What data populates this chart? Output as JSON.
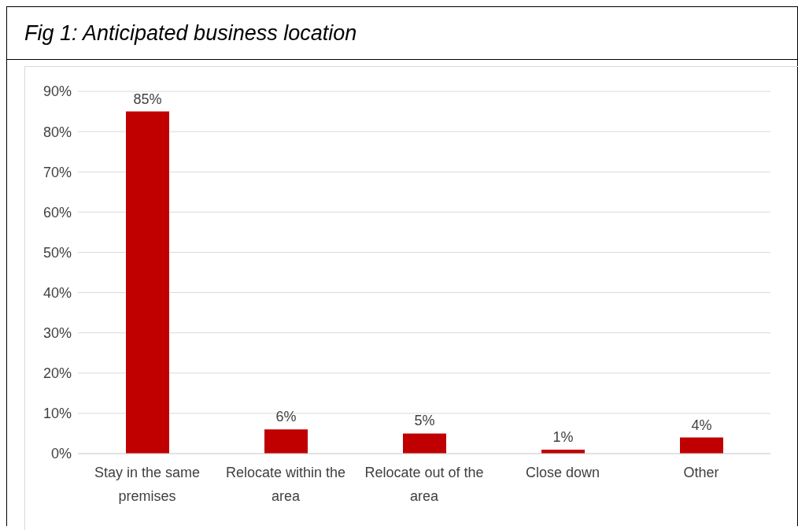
{
  "chart_data": {
    "type": "bar",
    "title": "Fig 1: Anticipated business location",
    "categories": [
      "Stay in the same premises",
      "Relocate within the area",
      "Relocate out of the area",
      "Close down",
      "Other"
    ],
    "values": [
      85,
      6,
      5,
      1,
      4
    ],
    "color": "#c00000",
    "value_labels": [
      "85%",
      "6%",
      "5%",
      "1%",
      "4%"
    ],
    "ylim": [
      0,
      90
    ],
    "yticks": [
      {
        "value": 0,
        "label": "0%"
      },
      {
        "value": 10,
        "label": "10%"
      },
      {
        "value": 20,
        "label": "20%"
      },
      {
        "value": 30,
        "label": "30%"
      },
      {
        "value": 40,
        "label": "40%"
      },
      {
        "value": 50,
        "label": "50%"
      },
      {
        "value": 60,
        "label": "60%"
      },
      {
        "value": 70,
        "label": "70%"
      },
      {
        "value": 80,
        "label": "80%"
      },
      {
        "value": 90,
        "label": "90%"
      }
    ],
    "grid": "y"
  }
}
